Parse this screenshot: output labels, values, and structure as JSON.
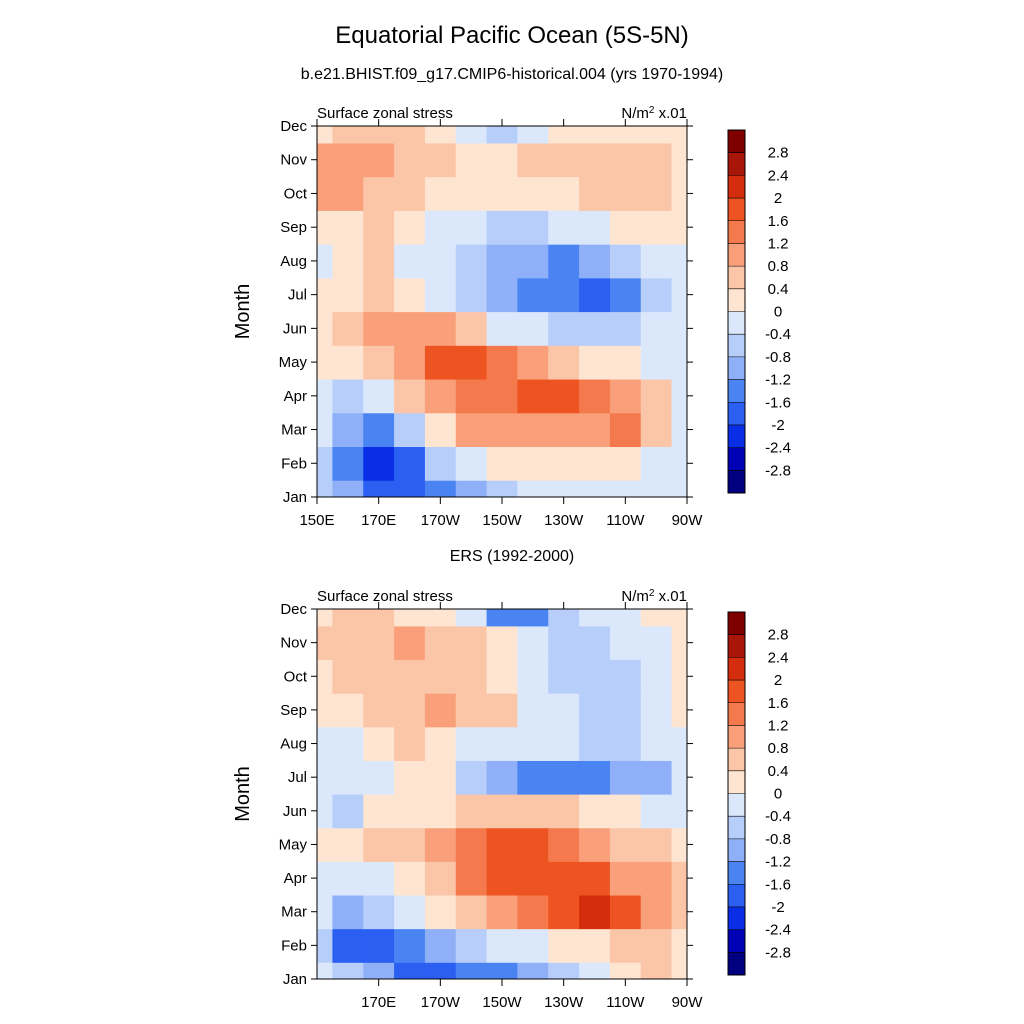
{
  "title": "Equatorial Pacific Ocean (5S-5N)",
  "subtitle": "b.e21.BHIST.f09_g17.CMIP6-historical.004 (yrs 1970-1994)",
  "colors": [
    "#000080",
    "#0000b4",
    "#0a2ee6",
    "#2a5ff2",
    "#4a83f2",
    "#8fb0f8",
    "#b8cefa",
    "#dbe8fc",
    "#fde5d2",
    "#fbc5a8",
    "#f9a07a",
    "#f47a4e",
    "#ed5422",
    "#d42d0e",
    "#a8160a",
    "#800000"
  ],
  "levels": [
    -2.8,
    -2.4,
    -2,
    -1.6,
    -1.2,
    -0.8,
    -0.4,
    0,
    0.4,
    0.8,
    1.2,
    1.6,
    2,
    2.4,
    2.8
  ],
  "chart_data": [
    {
      "type": "heatmap",
      "panel_title": "",
      "left_label": "Surface zonal stress",
      "right_label_base": "N/m",
      "right_label_sup": "2",
      "right_label_tail": " x.01",
      "ylabel": "Month",
      "xlabel": "",
      "y_ticks": [
        "Jan",
        "Feb",
        "Mar",
        "Apr",
        "May",
        "Jun",
        "Jul",
        "Aug",
        "Sep",
        "Oct",
        "Nov",
        "Dec"
      ],
      "x_ticks": [
        "150E",
        "170E",
        "170W",
        "150W",
        "130W",
        "110W",
        "90W"
      ],
      "x_range_deg_east": [
        150,
        270
      ],
      "colorbar_labels": [
        "2.8",
        "2.4",
        "2",
        "1.6",
        "1.2",
        "0.8",
        "0.4",
        "0",
        "-0.4",
        "-0.8",
        "-1.2",
        "-1.6",
        "-2",
        "-2.4",
        "-2.8"
      ],
      "x_columns": [
        "150E",
        "160E",
        "170E",
        "180",
        "170W",
        "160W",
        "150W",
        "140W",
        "130W",
        "120W",
        "110W",
        "100W",
        "90W"
      ],
      "values": [
        [
          -0.5,
          -1.2,
          -2.0,
          -2.0,
          -1.6,
          -0.9,
          -0.6,
          -0.3,
          -0.1,
          -0.1,
          -0.2,
          -0.2,
          -0.1
        ],
        [
          -0.6,
          -1.4,
          -2.1,
          -1.8,
          -0.8,
          -0.2,
          0.1,
          0.2,
          0.2,
          0.2,
          0.1,
          -0.1,
          -0.1
        ],
        [
          -0.3,
          -1.1,
          -1.6,
          -0.5,
          0.3,
          0.8,
          0.9,
          1.0,
          1.0,
          1.1,
          1.2,
          0.5,
          -0.1
        ],
        [
          -0.2,
          -0.6,
          -0.4,
          0.4,
          0.9,
          1.2,
          1.5,
          1.7,
          1.6,
          1.2,
          1.1,
          0.6,
          -0.1
        ],
        [
          0.1,
          0.2,
          0.5,
          0.9,
          1.6,
          1.7,
          1.4,
          1.1,
          0.5,
          0.1,
          0.0,
          -0.1,
          -0.2
        ],
        [
          0.1,
          0.4,
          0.8,
          0.9,
          0.8,
          0.4,
          -0.1,
          -0.3,
          -0.5,
          -0.7,
          -0.8,
          -0.4,
          -0.1
        ],
        [
          0.2,
          0.3,
          0.4,
          0.1,
          -0.3,
          -0.8,
          -1.2,
          -1.3,
          -1.6,
          -1.7,
          -1.6,
          -0.8,
          -0.2
        ],
        [
          -0.1,
          0.3,
          0.4,
          -0.1,
          -0.4,
          -0.7,
          -1.0,
          -1.2,
          -1.3,
          -1.1,
          -0.8,
          -0.4,
          -0.1
        ],
        [
          0.2,
          0.3,
          0.4,
          0.1,
          -0.2,
          -0.4,
          -0.5,
          -0.5,
          -0.4,
          -0.2,
          0.0,
          0.2,
          0.1
        ],
        [
          0.8,
          0.8,
          0.6,
          0.4,
          0.3,
          0.2,
          0.2,
          0.2,
          0.3,
          0.4,
          0.4,
          0.4,
          0.3
        ],
        [
          1.0,
          0.9,
          1.1,
          0.7,
          0.4,
          0.3,
          0.3,
          0.4,
          0.6,
          0.7,
          0.6,
          0.5,
          0.3
        ],
        [
          0.3,
          0.4,
          0.7,
          0.4,
          0.1,
          -0.3,
          -0.5,
          -0.4,
          0.0,
          0.2,
          0.3,
          0.3,
          0.2
        ]
      ]
    },
    {
      "type": "heatmap",
      "panel_title": "ERS (1992-2000)",
      "left_label": "Surface zonal stress",
      "right_label_base": "N/m",
      "right_label_sup": "2",
      "right_label_tail": " x.01",
      "ylabel": "Month",
      "xlabel": "",
      "y_ticks": [
        "Jan",
        "Feb",
        "Mar",
        "Apr",
        "May",
        "Jun",
        "Jul",
        "Aug",
        "Sep",
        "Oct",
        "Nov",
        "Dec"
      ],
      "x_ticks": [
        "170E",
        "170W",
        "150W",
        "130W",
        "110W",
        "90W"
      ],
      "x_range_deg_east": [
        150,
        270
      ],
      "colorbar_labels": [
        "2.8",
        "2.4",
        "2",
        "1.6",
        "1.2",
        "0.8",
        "0.4",
        "0",
        "-0.4",
        "-0.8",
        "-1.2",
        "-1.6",
        "-2",
        "-2.4",
        "-2.8"
      ],
      "x_columns": [
        "150E",
        "160E",
        "170E",
        "180",
        "170W",
        "160W",
        "150W",
        "140W",
        "130W",
        "120W",
        "110W",
        "100W",
        "90W"
      ],
      "values": [
        [
          -0.2,
          -0.8,
          -1.2,
          -1.8,
          -1.9,
          -1.4,
          -1.3,
          -1.1,
          -0.6,
          -0.2,
          0.3,
          0.5,
          0.2
        ],
        [
          -0.6,
          -1.7,
          -1.8,
          -1.4,
          -0.9,
          -0.6,
          -0.3,
          -0.1,
          0.1,
          0.2,
          0.6,
          0.5,
          0.2
        ],
        [
          -0.3,
          -0.9,
          -0.7,
          -0.2,
          0.3,
          0.6,
          0.9,
          1.3,
          1.9,
          2.1,
          1.6,
          0.9,
          0.4
        ],
        [
          -0.2,
          -0.4,
          -0.1,
          0.3,
          0.6,
          1.2,
          1.6,
          1.9,
          1.8,
          1.6,
          1.1,
          0.8,
          0.4
        ],
        [
          0.1,
          0.2,
          0.4,
          0.6,
          0.9,
          1.4,
          1.7,
          1.6,
          1.2,
          1.0,
          0.6,
          0.4,
          0.2
        ],
        [
          -0.1,
          -0.5,
          0.1,
          0.2,
          0.3,
          0.4,
          0.5,
          0.5,
          0.4,
          0.2,
          0.1,
          -0.1,
          -0.1
        ],
        [
          -0.1,
          -0.2,
          -0.1,
          0.1,
          0.0,
          -0.5,
          -0.9,
          -1.4,
          -1.3,
          -1.3,
          -1.2,
          -0.9,
          -0.2
        ],
        [
          -0.2,
          -0.1,
          0.2,
          0.4,
          0.3,
          -0.1,
          -0.3,
          -0.4,
          -0.4,
          -0.6,
          -0.8,
          -0.4,
          -0.1
        ],
        [
          0.1,
          0.3,
          0.5,
          0.6,
          0.8,
          0.7,
          0.4,
          -0.2,
          -0.4,
          -0.5,
          -0.5,
          -0.3,
          0.0
        ],
        [
          0.3,
          0.4,
          0.6,
          0.5,
          0.5,
          0.6,
          0.3,
          -0.2,
          -0.5,
          -0.7,
          -0.7,
          -0.3,
          0.1
        ],
        [
          0.6,
          0.5,
          0.7,
          0.9,
          0.7,
          0.6,
          0.1,
          -0.4,
          -0.7,
          -0.6,
          -0.4,
          -0.2,
          0.2
        ],
        [
          0.3,
          0.5,
          0.4,
          0.2,
          0.2,
          -0.4,
          -1.4,
          -1.3,
          -0.8,
          -0.3,
          -0.1,
          0.0,
          0.2
        ]
      ]
    }
  ]
}
